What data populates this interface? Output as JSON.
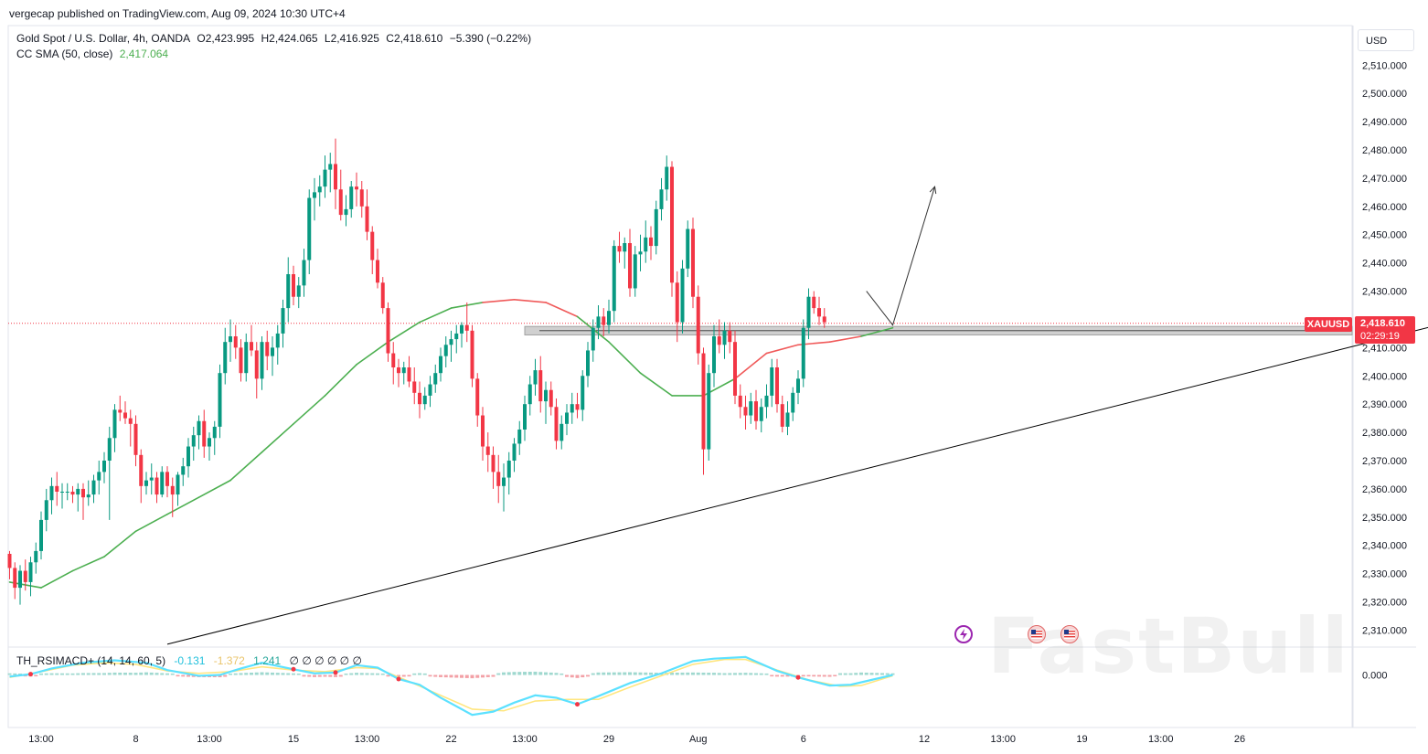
{
  "header": {
    "publisher": "vergecap published on TradingView.com, Aug 09, 2024 10:30 UTC+4"
  },
  "legend": {
    "symbol": "Gold Spot / U.S. Dollar, 4h, OANDA",
    "open": "O2,423.995",
    "high": "H2,424.065",
    "low": "L2,416.925",
    "close": "C2,418.610",
    "change": "−5.390 (−0.22%)",
    "sma_label": "CC SMA (50, close)",
    "sma_value": "2,417.064",
    "indicator_label": "TH_RSIMACD+ (14, 14, 60, 5)",
    "indicator_v1": "-0.131",
    "indicator_v2": "-1.372",
    "indicator_v3": "1.241",
    "indicator_rest": "∅ ∅ ∅ ∅ ∅ ∅"
  },
  "price_axis": {
    "currency": "USD",
    "symbol_tag": "XAUUSD",
    "last_price": "2,418.610",
    "countdown": "02:29:19",
    "osc_zero": "0.000"
  },
  "watermark": "FastBull",
  "colors": {
    "up": "#089981",
    "down": "#f23645",
    "sma": "#4caf50",
    "sma_above": "#f05a5a",
    "macd_line": "#5ce1ff",
    "signal_line": "#ffe680",
    "trendline": "#000000",
    "zone": "#c8c8c8"
  },
  "chart_data": {
    "type": "candlestick",
    "title": "Gold Spot / U.S. Dollar, 4h, OANDA",
    "timeframe": "4h",
    "y_ticks": [
      2310,
      2320,
      2330,
      2340,
      2350,
      2360,
      2370,
      2380,
      2390,
      2400,
      2410,
      2420,
      2430,
      2440,
      2450,
      2460,
      2470,
      2480,
      2490,
      2500,
      2510
    ],
    "y_tick_labels": [
      "2,310.000",
      "2,320.000",
      "2,330.000",
      "2,340.000",
      "2,350.000",
      "2,360.000",
      "2,370.000",
      "2,380.000",
      "2,390.000",
      "2,400.000",
      "2,410.000",
      "2,420.000",
      "2,430.000",
      "2,440.000",
      "2,450.000",
      "2,460.000",
      "2,470.000",
      "2,480.000",
      "2,490.000",
      "2,500.000",
      "2,510.000"
    ],
    "ylim": [
      2304,
      2524
    ],
    "x_ticks": [
      {
        "label": "13:00",
        "bar": 6
      },
      {
        "label": "8",
        "bar": 24
      },
      {
        "label": "13:00",
        "bar": 38
      },
      {
        "label": "15",
        "bar": 54
      },
      {
        "label": "13:00",
        "bar": 68
      },
      {
        "label": "22",
        "bar": 84
      },
      {
        "label": "13:00",
        "bar": 98
      },
      {
        "label": "29",
        "bar": 114
      },
      {
        "label": "Aug",
        "bar": 131
      },
      {
        "label": "6",
        "bar": 151
      },
      {
        "label": "12",
        "bar": 174
      },
      {
        "label": "13:00",
        "bar": 189
      },
      {
        "label": "19",
        "bar": 204
      },
      {
        "label": "13:00",
        "bar": 219
      },
      {
        "label": "26",
        "bar": 234
      }
    ],
    "candles": [
      [
        2337,
        2338,
        2328,
        2332
      ],
      [
        2332,
        2334,
        2321,
        2325
      ],
      [
        2325,
        2333,
        2319,
        2331
      ],
      [
        2331,
        2335,
        2324,
        2327
      ],
      [
        2327,
        2336,
        2322,
        2334
      ],
      [
        2334,
        2341,
        2330,
        2338
      ],
      [
        2338,
        2352,
        2335,
        2349
      ],
      [
        2349,
        2360,
        2345,
        2356
      ],
      [
        2356,
        2364,
        2351,
        2361
      ],
      [
        2361,
        2366,
        2354,
        2359
      ],
      [
        2359,
        2362,
        2353,
        2359
      ],
      [
        2359,
        2362,
        2356,
        2359
      ],
      [
        2359,
        2361,
        2355,
        2358
      ],
      [
        2358,
        2362,
        2352,
        2360
      ],
      [
        2360,
        2362,
        2349,
        2357
      ],
      [
        2357,
        2363,
        2354,
        2358
      ],
      [
        2358,
        2365,
        2355,
        2363
      ],
      [
        2363,
        2370,
        2358,
        2366
      ],
      [
        2366,
        2373,
        2362,
        2370
      ],
      [
        2370,
        2382,
        2349,
        2378
      ],
      [
        2378,
        2390,
        2373,
        2388
      ],
      [
        2388,
        2393,
        2384,
        2387
      ],
      [
        2387,
        2391,
        2383,
        2385
      ],
      [
        2385,
        2388,
        2375,
        2383
      ],
      [
        2383,
        2386,
        2368,
        2372
      ],
      [
        2372,
        2374,
        2355,
        2361
      ],
      [
        2361,
        2366,
        2358,
        2363
      ],
      [
        2363,
        2369,
        2358,
        2364
      ],
      [
        2364,
        2366,
        2355,
        2358
      ],
      [
        2358,
        2368,
        2357,
        2366
      ],
      [
        2366,
        2368,
        2357,
        2361
      ],
      [
        2361,
        2364,
        2350,
        2358
      ],
      [
        2358,
        2366,
        2354,
        2365
      ],
      [
        2365,
        2371,
        2361,
        2368
      ],
      [
        2368,
        2378,
        2364,
        2375
      ],
      [
        2375,
        2382,
        2370,
        2379
      ],
      [
        2379,
        2386,
        2374,
        2384
      ],
      [
        2384,
        2388,
        2371,
        2375
      ],
      [
        2375,
        2380,
        2370,
        2378
      ],
      [
        2378,
        2384,
        2372,
        2382
      ],
      [
        2382,
        2404,
        2378,
        2401
      ],
      [
        2401,
        2417,
        2397,
        2412
      ],
      [
        2412,
        2420,
        2405,
        2414
      ],
      [
        2414,
        2418,
        2406,
        2410
      ],
      [
        2410,
        2413,
        2398,
        2401
      ],
      [
        2401,
        2415,
        2398,
        2412
      ],
      [
        2412,
        2418,
        2407,
        2409
      ],
      [
        2409,
        2412,
        2392,
        2399
      ],
      [
        2399,
        2414,
        2395,
        2412
      ],
      [
        2412,
        2416,
        2402,
        2407
      ],
      [
        2407,
        2414,
        2400,
        2410
      ],
      [
        2410,
        2418,
        2404,
        2415
      ],
      [
        2415,
        2427,
        2410,
        2424
      ],
      [
        2424,
        2442,
        2419,
        2436
      ],
      [
        2436,
        2439,
        2425,
        2428
      ],
      [
        2428,
        2435,
        2424,
        2432
      ],
      [
        2432,
        2445,
        2428,
        2441
      ],
      [
        2441,
        2466,
        2436,
        2463
      ],
      [
        2463,
        2470,
        2455,
        2465
      ],
      [
        2465,
        2471,
        2460,
        2467
      ],
      [
        2467,
        2478,
        2463,
        2473
      ],
      [
        2473,
        2479,
        2465,
        2475
      ],
      [
        2475,
        2484,
        2459,
        2466
      ],
      [
        2466,
        2473,
        2455,
        2457
      ],
      [
        2457,
        2464,
        2453,
        2459
      ],
      [
        2459,
        2469,
        2456,
        2467
      ],
      [
        2467,
        2472,
        2460,
        2466
      ],
      [
        2466,
        2469,
        2456,
        2460
      ],
      [
        2460,
        2466,
        2448,
        2451
      ],
      [
        2451,
        2453,
        2436,
        2441
      ],
      [
        2441,
        2445,
        2431,
        2433
      ],
      [
        2433,
        2435,
        2422,
        2424
      ],
      [
        2424,
        2426,
        2405,
        2408
      ],
      [
        2408,
        2412,
        2397,
        2403
      ],
      [
        2403,
        2406,
        2396,
        2401
      ],
      [
        2401,
        2405,
        2397,
        2403
      ],
      [
        2403,
        2407,
        2396,
        2398
      ],
      [
        2398,
        2403,
        2390,
        2394
      ],
      [
        2394,
        2398,
        2385,
        2390
      ],
      [
        2390,
        2396,
        2388,
        2393
      ],
      [
        2393,
        2400,
        2389,
        2397
      ],
      [
        2397,
        2404,
        2394,
        2401
      ],
      [
        2401,
        2410,
        2398,
        2407
      ],
      [
        2407,
        2414,
        2403,
        2411
      ],
      [
        2411,
        2416,
        2405,
        2413
      ],
      [
        2413,
        2418,
        2408,
        2415
      ],
      [
        2415,
        2419,
        2410,
        2418
      ],
      [
        2418,
        2426,
        2412,
        2416
      ],
      [
        2416,
        2418,
        2396,
        2399
      ],
      [
        2399,
        2401,
        2382,
        2386
      ],
      [
        2386,
        2389,
        2370,
        2375
      ],
      [
        2375,
        2380,
        2366,
        2372
      ],
      [
        2372,
        2375,
        2360,
        2366
      ],
      [
        2366,
        2372,
        2355,
        2361
      ],
      [
        2361,
        2369,
        2352,
        2364
      ],
      [
        2364,
        2373,
        2358,
        2370
      ],
      [
        2370,
        2378,
        2366,
        2376
      ],
      [
        2376,
        2384,
        2372,
        2381
      ],
      [
        2381,
        2393,
        2377,
        2390
      ],
      [
        2390,
        2400,
        2386,
        2397
      ],
      [
        2397,
        2406,
        2393,
        2402
      ],
      [
        2402,
        2407,
        2387,
        2391
      ],
      [
        2391,
        2398,
        2383,
        2395
      ],
      [
        2395,
        2398,
        2386,
        2389
      ],
      [
        2389,
        2392,
        2374,
        2377
      ],
      [
        2377,
        2386,
        2374,
        2383
      ],
      [
        2383,
        2390,
        2379,
        2387
      ],
      [
        2387,
        2394,
        2383,
        2390
      ],
      [
        2390,
        2394,
        2385,
        2388
      ],
      [
        2388,
        2402,
        2384,
        2400
      ],
      [
        2400,
        2412,
        2396,
        2409
      ],
      [
        2409,
        2420,
        2405,
        2417
      ],
      [
        2417,
        2425,
        2413,
        2421
      ],
      [
        2421,
        2424,
        2414,
        2418
      ],
      [
        2418,
        2427,
        2415,
        2423
      ],
      [
        2423,
        2448,
        2419,
        2446
      ],
      [
        2446,
        2451,
        2440,
        2444
      ],
      [
        2444,
        2449,
        2438,
        2447
      ],
      [
        2447,
        2452,
        2428,
        2431
      ],
      [
        2431,
        2446,
        2428,
        2443
      ],
      [
        2443,
        2450,
        2437,
        2444
      ],
      [
        2444,
        2455,
        2440,
        2449
      ],
      [
        2449,
        2453,
        2441,
        2446
      ],
      [
        2446,
        2462,
        2443,
        2459
      ],
      [
        2459,
        2470,
        2455,
        2466
      ],
      [
        2466,
        2478,
        2462,
        2474
      ],
      [
        2474,
        2476,
        2428,
        2433
      ],
      [
        2433,
        2437,
        2412,
        2419
      ],
      [
        2419,
        2441,
        2415,
        2438
      ],
      [
        2438,
        2455,
        2435,
        2452
      ],
      [
        2452,
        2456,
        2424,
        2428
      ],
      [
        2428,
        2432,
        2404,
        2408
      ],
      [
        2408,
        2410,
        2365,
        2374
      ],
      [
        2374,
        2404,
        2370,
        2401
      ],
      [
        2401,
        2418,
        2396,
        2414
      ],
      [
        2414,
        2420,
        2408,
        2411
      ],
      [
        2411,
        2419,
        2406,
        2416
      ],
      [
        2416,
        2419,
        2408,
        2412
      ],
      [
        2412,
        2416,
        2390,
        2393
      ],
      [
        2393,
        2397,
        2385,
        2389
      ],
      [
        2389,
        2393,
        2381,
        2386
      ],
      [
        2386,
        2394,
        2383,
        2391
      ],
      [
        2391,
        2395,
        2381,
        2384
      ],
      [
        2384,
        2392,
        2380,
        2389
      ],
      [
        2389,
        2397,
        2385,
        2393
      ],
      [
        2393,
        2406,
        2389,
        2403
      ],
      [
        2403,
        2406,
        2387,
        2390
      ],
      [
        2390,
        2393,
        2380,
        2382
      ],
      [
        2382,
        2391,
        2379,
        2387
      ],
      [
        2387,
        2396,
        2384,
        2394
      ],
      [
        2394,
        2402,
        2390,
        2399
      ],
      [
        2399,
        2420,
        2396,
        2417
      ],
      [
        2417,
        2431,
        2413,
        2428
      ],
      [
        2428,
        2430,
        2422,
        2424
      ],
      [
        2424,
        2428,
        2418,
        2421
      ],
      [
        2421,
        2424,
        2417,
        2419
      ]
    ],
    "sma50": [
      [
        0,
        2327
      ],
      [
        6,
        2325
      ],
      [
        12,
        2331
      ],
      [
        18,
        2336
      ],
      [
        24,
        2345
      ],
      [
        30,
        2351
      ],
      [
        36,
        2357
      ],
      [
        42,
        2363
      ],
      [
        48,
        2373
      ],
      [
        54,
        2383
      ],
      [
        60,
        2393
      ],
      [
        66,
        2404
      ],
      [
        72,
        2412
      ],
      [
        78,
        2419
      ],
      [
        84,
        2424
      ],
      [
        90,
        2426
      ],
      [
        96,
        2427
      ],
      [
        102,
        2426
      ],
      [
        108,
        2421
      ],
      [
        114,
        2412
      ],
      [
        120,
        2401
      ],
      [
        126,
        2393
      ],
      [
        132,
        2393
      ],
      [
        138,
        2399
      ],
      [
        144,
        2408
      ],
      [
        150,
        2411
      ],
      [
        156,
        2412
      ],
      [
        162,
        2414
      ],
      [
        168,
        2417
      ]
    ],
    "annotations": {
      "support_zone": {
        "from_bar": 98,
        "to_bar": 281,
        "y_low": 2414.5,
        "y_high": 2417.5
      },
      "trendline": {
        "from": [
          30,
          2305
        ],
        "to": [
          276,
          2420
        ]
      },
      "projection_arrow": [
        [
          163,
          2430
        ],
        [
          168,
          2418
        ],
        [
          176,
          2467
        ]
      ],
      "current_price_line": 2418.61
    },
    "oscillator": {
      "name": "TH_RSIMACD+ (14, 14, 60, 5)",
      "zero_label": "0.000",
      "macd": [
        [
          0,
          -0.2
        ],
        [
          4,
          0.1
        ],
        [
          8,
          0.8
        ],
        [
          14,
          1.5
        ],
        [
          20,
          1.8
        ],
        [
          26,
          1.5
        ],
        [
          30,
          0.6
        ],
        [
          36,
          -0.1
        ],
        [
          40,
          0.0
        ],
        [
          44,
          0.8
        ],
        [
          48,
          1.5
        ],
        [
          54,
          0.7
        ],
        [
          58,
          0.2
        ],
        [
          62,
          0.3
        ],
        [
          66,
          1.2
        ],
        [
          70,
          0.9
        ],
        [
          74,
          -0.5
        ],
        [
          78,
          -1.2
        ],
        [
          82,
          -2.8
        ],
        [
          88,
          -4.9
        ],
        [
          92,
          -4.5
        ],
        [
          96,
          -3.4
        ],
        [
          100,
          -2.5
        ],
        [
          104,
          -2.8
        ],
        [
          108,
          -3.6
        ],
        [
          112,
          -2.6
        ],
        [
          118,
          -1.0
        ],
        [
          124,
          0.2
        ],
        [
          130,
          1.7
        ],
        [
          134,
          2.0
        ],
        [
          140,
          2.2
        ],
        [
          146,
          0.5
        ],
        [
          150,
          -0.3
        ],
        [
          156,
          -1.3
        ],
        [
          160,
          -1.2
        ],
        [
          164,
          -0.6
        ],
        [
          168,
          0.0
        ]
      ],
      "signal": [
        [
          0,
          -0.3
        ],
        [
          6,
          0.4
        ],
        [
          12,
          1.2
        ],
        [
          18,
          1.5
        ],
        [
          24,
          1.3
        ],
        [
          30,
          0.5
        ],
        [
          36,
          0.2
        ],
        [
          42,
          0.4
        ],
        [
          48,
          1.0
        ],
        [
          54,
          0.6
        ],
        [
          60,
          0.4
        ],
        [
          66,
          0.9
        ],
        [
          70,
          0.8
        ],
        [
          76,
          -0.8
        ],
        [
          82,
          -2.5
        ],
        [
          88,
          -4.2
        ],
        [
          94,
          -4.4
        ],
        [
          100,
          -3.2
        ],
        [
          106,
          -3.0
        ],
        [
          112,
          -3.0
        ],
        [
          118,
          -1.5
        ],
        [
          124,
          -0.1
        ],
        [
          130,
          1.3
        ],
        [
          136,
          1.9
        ],
        [
          140,
          1.9
        ],
        [
          146,
          0.6
        ],
        [
          152,
          -0.6
        ],
        [
          158,
          -1.4
        ],
        [
          162,
          -1.3
        ],
        [
          168,
          -0.1
        ]
      ],
      "ylim": [
        -6,
        3.2
      ]
    }
  }
}
